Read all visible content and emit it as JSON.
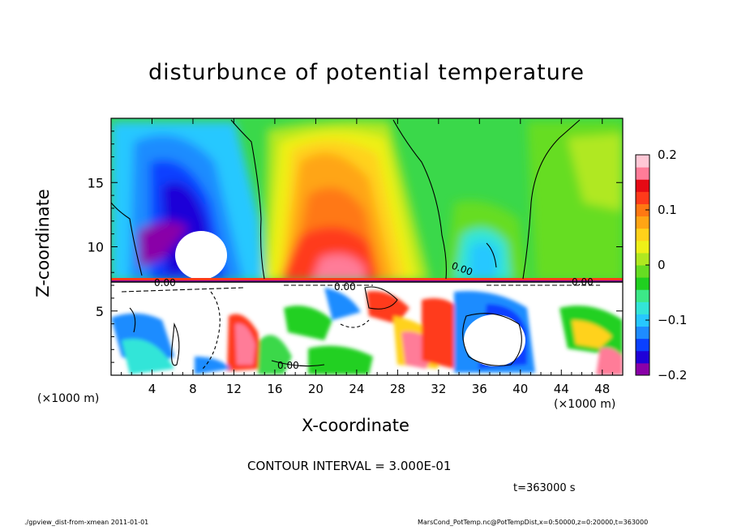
{
  "chart_data": {
    "type": "heatmap",
    "title": "disturbunce of potential temperature",
    "xlabel": "X-coordinate",
    "ylabel": "Z-coordinate",
    "x_unit_label": "(×1000 m)",
    "x_ticks": [
      "4",
      "8",
      "12",
      "16",
      "20",
      "24",
      "28",
      "32",
      "36",
      "40",
      "44",
      "48"
    ],
    "y_ticks": [
      "5",
      "10",
      "15"
    ],
    "xlim": [
      0,
      50
    ],
    "ylim": [
      0,
      20
    ],
    "colorbar": {
      "ticks": [
        "0.2",
        "0.1",
        "0",
        "−0.1",
        "−0.2"
      ],
      "range": [
        -0.2,
        0.2
      ],
      "colors": [
        "#8a00a8",
        "#1f00d8",
        "#0a40ff",
        "#1e8cff",
        "#27c8ff",
        "#33e5d8",
        "#3ce888",
        "#20d020",
        "#66dd22",
        "#b0e820",
        "#eef018",
        "#ffd21a",
        "#ffa514",
        "#ff7812",
        "#ff3a1a",
        "#e60a14",
        "#ff7c98",
        "#ffc8d6"
      ]
    },
    "contour_interval_text": "CONTOUR INTERVAL = 3.000E-01",
    "contour_labels": [
      "0.00",
      "0.00",
      "0.00",
      "0.00",
      "0.00"
    ],
    "time_text": "t=363000 s",
    "footer_left": "./gpview_dist-from-xmean  2011-01-01",
    "footer_right": "MarsCond_PotTemp.nc@PotTempDist,x=0:50000,z=0:20000,t=363000"
  }
}
